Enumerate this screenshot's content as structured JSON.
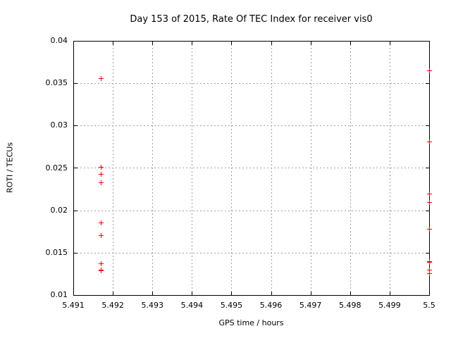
{
  "chart_data": {
    "type": "scatter",
    "title": "Day 153 of 2015, Rate Of TEC Index for receiver vis0",
    "xlabel": "GPS time / hours",
    "ylabel": "ROTI / TECUs",
    "xlim": [
      5.491,
      5.5
    ],
    "ylim": [
      0.01,
      0.04
    ],
    "x_tick_values": [
      5.491,
      5.492,
      5.493,
      5.494,
      5.495,
      5.496,
      5.497,
      5.498,
      5.499,
      5.5
    ],
    "x_tick_labels": [
      "5.491",
      "5.492",
      "5.493",
      "5.494",
      "5.495",
      "5.496",
      "5.497",
      "5.498",
      "5.499",
      "5.5"
    ],
    "y_tick_values": [
      0.01,
      0.015,
      0.02,
      0.025,
      0.03,
      0.035,
      0.04
    ],
    "y_tick_labels": [
      "0.01",
      "0.015",
      "0.02",
      "0.025",
      "0.03",
      "0.035",
      "0.04"
    ],
    "grid": true,
    "legend": "none",
    "marker_shape": "plus",
    "marker_color": "#ff0000",
    "grid_color": "#a0a0a0",
    "border_color": "#000000",
    "series": [
      {
        "name": "ROTI",
        "points": [
          [
            5.4917,
            0.0356
          ],
          [
            5.4917,
            0.0251
          ],
          [
            5.4917,
            0.0243
          ],
          [
            5.4917,
            0.0233
          ],
          [
            5.4917,
            0.0186
          ],
          [
            5.4917,
            0.0171
          ],
          [
            5.4917,
            0.0137
          ],
          [
            5.4917,
            0.013
          ],
          [
            5.4917,
            0.0129
          ],
          [
            5.5,
            0.0365
          ],
          [
            5.5,
            0.0281
          ],
          [
            5.5,
            0.022
          ],
          [
            5.5,
            0.021
          ],
          [
            5.5,
            0.0178
          ],
          [
            5.5,
            0.014
          ],
          [
            5.5,
            0.0139
          ],
          [
            5.5,
            0.013
          ],
          [
            5.5,
            0.0126
          ]
        ]
      }
    ]
  }
}
